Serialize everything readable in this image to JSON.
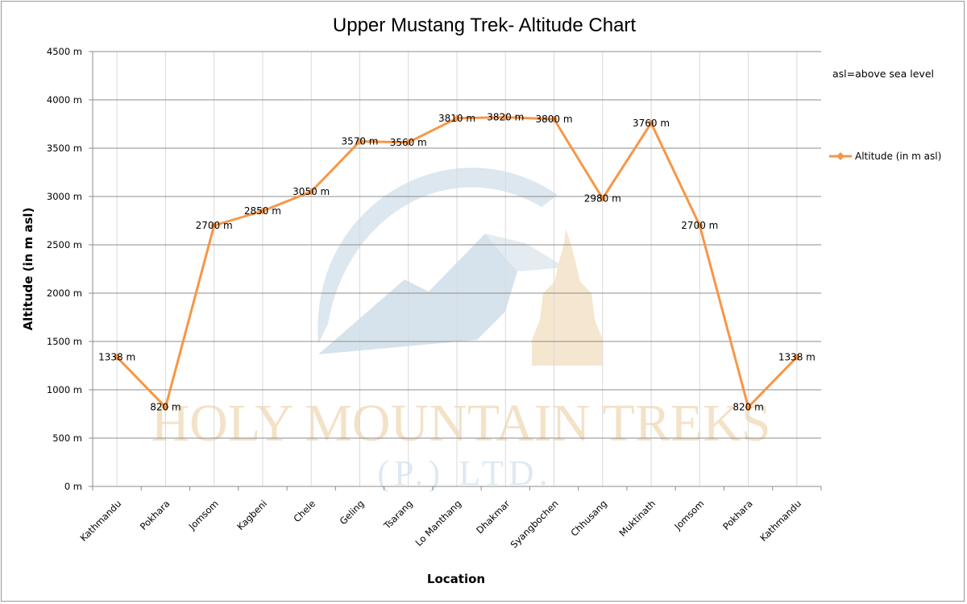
{
  "chart_data": {
    "type": "line",
    "title": "Upper Mustang Trek- Altitude Chart",
    "xlabel": "Location",
    "ylabel": "Altitude (in m asl)",
    "ylim": [
      0,
      4500
    ],
    "y_ticks": [
      "0 m",
      "500 m",
      "1000 m",
      "1500 m",
      "2000 m",
      "2500 m",
      "3000 m",
      "3500 m",
      "4000 m",
      "4500 m"
    ],
    "y_tick_values": [
      0,
      500,
      1000,
      1500,
      2000,
      2500,
      3000,
      3500,
      4000,
      4500
    ],
    "grid": true,
    "categories": [
      "Kathmandu",
      "Pokhara",
      "Jomsom",
      "Kagbeni",
      "Chele",
      "Geling",
      "Tsarang",
      "Lo Manthang",
      "Dhakmar",
      "Syangbochen",
      "Chhusang",
      "Muktinath",
      "Jomsom",
      "Pokhara",
      "Kathmandu"
    ],
    "series": [
      {
        "name": "Altitude (in  m asl)",
        "color": "#f79646",
        "values": [
          1338,
          820,
          2700,
          2850,
          3050,
          3570,
          3560,
          3810,
          3820,
          3800,
          2980,
          3760,
          2700,
          820,
          1338
        ],
        "data_labels": [
          "1338 m",
          "820 m",
          "2700 m",
          "2850 m",
          "3050 m",
          "3570 m",
          "3560 m",
          "3810 m",
          "3820 m",
          "3800 m",
          "2980 m",
          "3760 m",
          "2700 m",
          "820 m",
          "1338 m"
        ]
      }
    ],
    "legend": {
      "position": "right",
      "label": "Altitude (in  m asl)"
    },
    "note": "asl=above sea level",
    "watermark": {
      "line1": "HOLY MOUNTAIN TREKS",
      "line2": "(P.) LTD."
    }
  }
}
